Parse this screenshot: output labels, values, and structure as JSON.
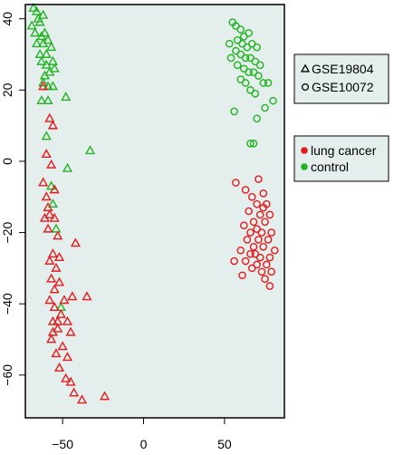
{
  "chart_data": {
    "type": "scatter",
    "title": "",
    "xlabel": "",
    "ylabel": "",
    "xlim": [
      -73,
      87
    ],
    "ylim": [
      -72,
      44
    ],
    "xticks": [
      -50,
      0,
      50
    ],
    "yticks": [
      -60,
      -40,
      -20,
      0,
      20,
      40
    ],
    "xtick_labels": [
      "−50",
      "0",
      "50"
    ],
    "ytick_labels": [
      "−60",
      "−40",
      "−20",
      "0",
      "20",
      "40"
    ],
    "grid": false,
    "plot_background": "#e4eeec",
    "legend_placement": "right, outside plot",
    "legends": [
      {
        "name": "dataset",
        "entries": [
          {
            "label": "GSE19804",
            "marker": "triangle-open",
            "color": "#000000"
          },
          {
            "label": "GSE10072",
            "marker": "circle-open",
            "color": "#000000"
          }
        ]
      },
      {
        "name": "condition",
        "entries": [
          {
            "label": "lung cancer",
            "marker": "circle-filled",
            "color": "#e41a1c"
          },
          {
            "label": "control",
            "marker": "circle-filled",
            "color": "#22b322"
          }
        ]
      }
    ],
    "series": [
      {
        "dataset": "GSE19804",
        "condition": "control",
        "marker": "triangle-open",
        "color": "#22b322",
        "points": [
          [
            -68,
            43
          ],
          [
            -66,
            42
          ],
          [
            -69,
            38
          ],
          [
            -65,
            40
          ],
          [
            -64,
            39
          ],
          [
            -62,
            41
          ],
          [
            -67,
            36
          ],
          [
            -63,
            35
          ],
          [
            -61,
            36
          ],
          [
            -66,
            33
          ],
          [
            -62,
            33
          ],
          [
            -59,
            34
          ],
          [
            -64,
            30
          ],
          [
            -60,
            30
          ],
          [
            -57,
            32
          ],
          [
            -63,
            28
          ],
          [
            -60,
            27
          ],
          [
            -56,
            28
          ],
          [
            -61,
            24
          ],
          [
            -58,
            25
          ],
          [
            -55,
            26
          ],
          [
            -62,
            22
          ],
          [
            -59,
            21
          ],
          [
            -56,
            21
          ],
          [
            -63,
            17
          ],
          [
            -59,
            17
          ],
          [
            -48,
            18
          ],
          [
            -60,
            7
          ],
          [
            -33,
            3
          ],
          [
            -47,
            -2
          ],
          [
            -57,
            -7
          ],
          [
            -54,
            -19
          ],
          [
            -51,
            -41
          ],
          [
            -56,
            -12
          ]
        ]
      },
      {
        "dataset": "GSE19804",
        "condition": "lung cancer",
        "marker": "triangle-open",
        "color": "#e41a1c",
        "points": [
          [
            -62,
            21
          ],
          [
            -58,
            12
          ],
          [
            -56,
            10
          ],
          [
            -60,
            2
          ],
          [
            -57,
            -1
          ],
          [
            -62,
            -6
          ],
          [
            -55,
            -8
          ],
          [
            -60,
            -10
          ],
          [
            -58,
            -15
          ],
          [
            -61,
            -16
          ],
          [
            -55,
            -16
          ],
          [
            -59,
            -19
          ],
          [
            -53,
            -21
          ],
          [
            -42,
            -23
          ],
          [
            -56,
            -26
          ],
          [
            -52,
            -27
          ],
          [
            -58,
            -28
          ],
          [
            -54,
            -30
          ],
          [
            -57,
            -33
          ],
          [
            -52,
            -34
          ],
          [
            -55,
            -36
          ],
          [
            -58,
            -39
          ],
          [
            -49,
            -39
          ],
          [
            -35,
            -38
          ],
          [
            -55,
            -41
          ],
          [
            -51,
            -43
          ],
          [
            -56,
            -45
          ],
          [
            -47,
            -45
          ],
          [
            -53,
            -47
          ],
          [
            -45,
            -48
          ],
          [
            -57,
            -50
          ],
          [
            -50,
            -52
          ],
          [
            -54,
            -54
          ],
          [
            -47,
            -55
          ],
          [
            -52,
            -58
          ],
          [
            -48,
            -61
          ],
          [
            -45,
            -62
          ],
          [
            -43,
            -65
          ],
          [
            -24,
            -66
          ],
          [
            -38,
            -67
          ],
          [
            -44,
            -38
          ],
          [
            -59,
            -13
          ],
          [
            -53,
            -45
          ],
          [
            -56,
            -48
          ]
        ]
      },
      {
        "dataset": "GSE10072",
        "condition": "control",
        "marker": "circle-open",
        "color": "#22b322",
        "points": [
          [
            55,
            39
          ],
          [
            57,
            38
          ],
          [
            60,
            37
          ],
          [
            62,
            35
          ],
          [
            65,
            36
          ],
          [
            58,
            34
          ],
          [
            61,
            33
          ],
          [
            64,
            32
          ],
          [
            67,
            33
          ],
          [
            70,
            32
          ],
          [
            53,
            33
          ],
          [
            57,
            31
          ],
          [
            60,
            30
          ],
          [
            63,
            29
          ],
          [
            66,
            29
          ],
          [
            69,
            28
          ],
          [
            72,
            27
          ],
          [
            54,
            29
          ],
          [
            58,
            27
          ],
          [
            62,
            26
          ],
          [
            65,
            25
          ],
          [
            68,
            25
          ],
          [
            71,
            24
          ],
          [
            74,
            22
          ],
          [
            77,
            22
          ],
          [
            60,
            23
          ],
          [
            63,
            22
          ],
          [
            66,
            20
          ],
          [
            69,
            19
          ],
          [
            75,
            15
          ],
          [
            80,
            17
          ],
          [
            56,
            14
          ],
          [
            70,
            12
          ],
          [
            66,
            5
          ],
          [
            68,
            5
          ]
        ]
      },
      {
        "dataset": "GSE10072",
        "condition": "lung cancer",
        "marker": "circle-open",
        "color": "#e41a1c",
        "points": [
          [
            57,
            -6
          ],
          [
            63,
            -8
          ],
          [
            71,
            -5
          ],
          [
            74,
            -9
          ],
          [
            67,
            -10
          ],
          [
            76,
            -12
          ],
          [
            70,
            -12
          ],
          [
            65,
            -14
          ],
          [
            72,
            -15
          ],
          [
            78,
            -15
          ],
          [
            68,
            -17
          ],
          [
            75,
            -17
          ],
          [
            62,
            -18
          ],
          [
            70,
            -19
          ],
          [
            66,
            -20
          ],
          [
            73,
            -20
          ],
          [
            79,
            -20
          ],
          [
            64,
            -22
          ],
          [
            71,
            -22
          ],
          [
            77,
            -22
          ],
          [
            68,
            -24
          ],
          [
            74,
            -24
          ],
          [
            60,
            -25
          ],
          [
            81,
            -25
          ],
          [
            66,
            -26
          ],
          [
            72,
            -27
          ],
          [
            78,
            -27
          ],
          [
            56,
            -28
          ],
          [
            63,
            -28
          ],
          [
            70,
            -29
          ],
          [
            76,
            -29
          ],
          [
            67,
            -30
          ],
          [
            73,
            -31
          ],
          [
            79,
            -31
          ],
          [
            61,
            -32
          ],
          [
            75,
            -33
          ],
          [
            78,
            -35
          ],
          [
            69,
            -26
          ],
          [
            74,
            -13
          ]
        ]
      }
    ]
  }
}
